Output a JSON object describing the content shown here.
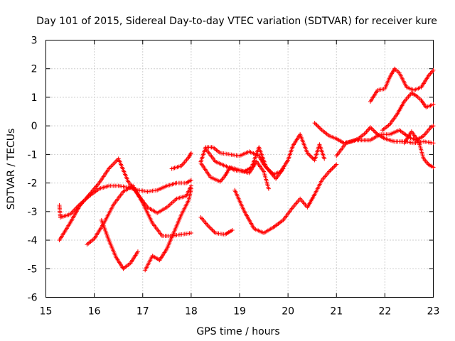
{
  "chart_data": {
    "type": "scatter",
    "title": "Day 101 of 2015, Sidereal Day-to-day VTEC variation (SDTVAR) for receiver kure",
    "xlabel": "GPS time / hours",
    "ylabel": "SDTVAR / TECUs",
    "xlim": [
      15,
      23
    ],
    "ylim": [
      -6,
      3
    ],
    "xticks": [
      "15",
      "16",
      "17",
      "18",
      "19",
      "20",
      "21",
      "22",
      "23"
    ],
    "yticks": [
      "-6",
      "-5",
      "-4",
      "-3",
      "-2",
      "-1",
      "0",
      "1",
      "2",
      "3"
    ],
    "grid": true,
    "marker": "+",
    "color": "#ff0000",
    "series": [
      {
        "name": "arc-1",
        "x": [
          15.28,
          15.3
        ],
        "y": [
          -2.78,
          -3.2
        ]
      },
      {
        "name": "arc-2",
        "x": [
          15.3,
          15.5,
          15.7,
          15.9,
          16.1,
          16.3,
          16.5,
          16.7,
          16.9,
          17.1,
          17.3,
          17.5,
          17.7,
          17.9,
          18.0
        ],
        "y": [
          -3.2,
          -3.1,
          -2.75,
          -2.45,
          -2.2,
          -2.1,
          -2.1,
          -2.15,
          -2.25,
          -2.3,
          -2.25,
          -2.1,
          -2.0,
          -2.0,
          -1.9
        ]
      },
      {
        "name": "arc-3",
        "x": [
          15.28,
          15.5,
          15.7,
          15.9,
          16.1,
          16.3,
          16.5,
          16.7,
          16.9,
          17.1,
          17.3,
          17.5,
          17.7,
          17.9,
          18.0
        ],
        "y": [
          -4.0,
          -3.4,
          -2.8,
          -2.4,
          -2.0,
          -1.5,
          -1.15,
          -1.95,
          -2.4,
          -2.85,
          -3.05,
          -2.85,
          -2.55,
          -2.45,
          -2.1
        ]
      },
      {
        "name": "arc-4",
        "x": [
          15.85,
          16.0,
          16.2,
          16.4,
          16.6,
          16.8,
          17.0,
          17.2,
          17.4,
          17.6,
          17.8,
          18.0
        ],
        "y": [
          -4.15,
          -3.95,
          -3.4,
          -2.75,
          -2.3,
          -2.1,
          -2.7,
          -3.4,
          -3.85,
          -3.85,
          -3.8,
          -3.75
        ]
      },
      {
        "name": "arc-5",
        "x": [
          16.15,
          16.3,
          16.45,
          16.6,
          16.75,
          16.9
        ],
        "y": [
          -3.3,
          -4.0,
          -4.6,
          -5.0,
          -4.8,
          -4.4
        ]
      },
      {
        "name": "arc-6",
        "x": [
          17.05,
          17.2,
          17.35,
          17.5,
          17.65,
          17.8,
          17.95,
          18.0
        ],
        "y": [
          -5.05,
          -4.55,
          -4.7,
          -4.3,
          -3.7,
          -3.1,
          -2.6,
          -2.2
        ]
      },
      {
        "name": "arc-7",
        "x": [
          17.6,
          17.8,
          17.95,
          18.0
        ],
        "y": [
          -1.5,
          -1.4,
          -1.1,
          -0.95
        ]
      },
      {
        "name": "arc-8",
        "x": [
          18.2,
          18.3,
          18.45,
          18.6,
          18.8,
          19.0,
          19.2,
          19.4,
          19.5,
          19.6,
          19.75,
          19.9
        ],
        "y": [
          -1.25,
          -0.75,
          -0.75,
          -0.95,
          -1.0,
          -1.05,
          -0.9,
          -1.05,
          -1.35,
          -1.55,
          -1.85,
          -1.5
        ]
      },
      {
        "name": "arc-9",
        "x": [
          18.2,
          18.4,
          18.6,
          18.7,
          18.8,
          19.0,
          19.2,
          19.35,
          19.5,
          19.6
        ],
        "y": [
          -1.3,
          -1.8,
          -1.95,
          -1.75,
          -1.45,
          -1.55,
          -1.65,
          -1.25,
          -1.6,
          -2.2
        ]
      },
      {
        "name": "arc-10",
        "x": [
          18.2,
          18.35,
          18.5,
          18.7,
          18.85
        ],
        "y": [
          -3.2,
          -3.5,
          -3.75,
          -3.8,
          -3.65
        ]
      },
      {
        "name": "arc-11",
        "x": [
          18.9,
          19.1,
          19.3,
          19.5,
          19.7,
          19.9,
          20.1,
          20.25,
          20.4,
          20.55,
          20.7,
          20.85,
          21.0
        ],
        "y": [
          -2.25,
          -3.0,
          -3.6,
          -3.75,
          -3.55,
          -3.3,
          -2.85,
          -2.55,
          -2.85,
          -2.4,
          -1.9,
          -1.6,
          -1.35
        ]
      },
      {
        "name": "arc-12",
        "x": [
          18.3,
          18.5,
          18.7,
          18.9,
          19.1,
          19.25,
          19.4,
          19.55,
          19.7,
          19.85,
          20.0,
          20.1,
          20.25,
          20.4,
          20.55,
          20.65,
          20.75
        ],
        "y": [
          -0.8,
          -1.25,
          -1.4,
          -1.55,
          -1.6,
          -1.45,
          -0.75,
          -1.45,
          -1.7,
          -1.6,
          -1.2,
          -0.7,
          -0.3,
          -0.95,
          -1.2,
          -0.65,
          -1.15
        ]
      },
      {
        "name": "arc-13",
        "x": [
          20.55,
          20.7,
          20.85,
          21.0,
          21.15,
          21.3,
          21.45,
          21.6,
          21.7,
          21.85,
          22.0,
          22.2,
          22.4,
          22.6,
          22.8,
          23.0
        ],
        "y": [
          0.1,
          -0.15,
          -0.35,
          -0.45,
          -0.6,
          -0.55,
          -0.45,
          -0.25,
          -0.05,
          -0.3,
          -0.45,
          -0.55,
          -0.55,
          -0.6,
          -0.55,
          -0.6
        ]
      },
      {
        "name": "arc-14",
        "x": [
          21.0,
          21.2,
          21.4,
          21.55,
          21.7,
          21.9,
          22.1,
          22.3,
          22.5,
          22.65,
          22.8,
          22.95,
          23.0
        ],
        "y": [
          -1.05,
          -0.6,
          -0.5,
          -0.5,
          -0.5,
          -0.3,
          -0.3,
          -0.15,
          -0.4,
          -0.5,
          -0.35,
          -0.05,
          0.0
        ]
      },
      {
        "name": "arc-15",
        "x": [
          21.7,
          21.85,
          22.0,
          22.1,
          22.2,
          22.3,
          22.45,
          22.6,
          22.75,
          22.9,
          23.0
        ],
        "y": [
          0.85,
          1.25,
          1.3,
          1.7,
          2.0,
          1.85,
          1.35,
          1.25,
          1.35,
          1.75,
          1.95
        ]
      },
      {
        "name": "arc-16",
        "x": [
          21.95,
          22.1,
          22.25,
          22.4,
          22.55,
          22.65,
          22.75,
          22.85,
          23.0
        ],
        "y": [
          -0.15,
          0.05,
          0.4,
          0.85,
          1.15,
          1.05,
          0.9,
          0.65,
          0.75
        ]
      },
      {
        "name": "arc-17",
        "x": [
          22.4,
          22.55,
          22.7,
          22.8,
          22.9,
          23.0
        ],
        "y": [
          -0.6,
          -0.2,
          -0.55,
          -1.15,
          -1.35,
          -1.45
        ]
      }
    ]
  }
}
